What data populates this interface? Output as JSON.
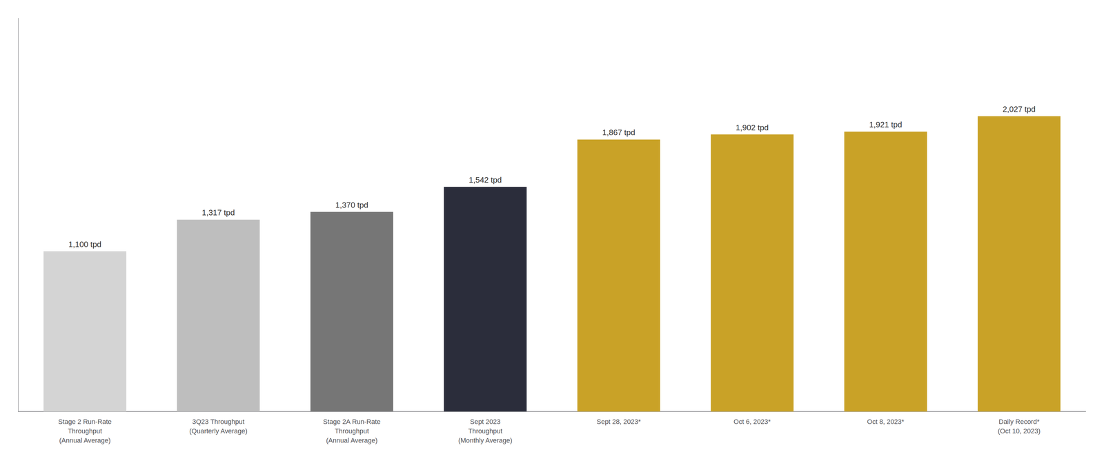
{
  "chart_data": {
    "type": "bar",
    "categories": [
      "Stage 2 Run-Rate\nThroughput\n(Annual Average)",
      "3Q23 Throughput\n(Quarterly Average)",
      "Stage 2A Run-Rate\nThroughput\n(Annual Average)",
      "Sept 2023\nThroughput\n(Monthly Average)",
      "Sept 28, 2023*",
      "Oct 6, 2023*",
      "Oct 8, 2023*",
      "Daily Record*\n(Oct 10, 2023)"
    ],
    "values": [
      1100,
      1317,
      1370,
      1542,
      1867,
      1902,
      1921,
      2027
    ],
    "value_labels": [
      "1,100 tpd",
      "1,317 tpd",
      "1,370 tpd",
      "1,542 tpd",
      "1,867 tpd",
      "1,902 tpd",
      "1,921 tpd",
      "2,027 tpd"
    ],
    "colors": [
      "#d4d4d4",
      "#bebebe",
      "#767676",
      "#2b2d3b",
      "#c9a227",
      "#c9a227",
      "#c9a227",
      "#c9a227"
    ],
    "ylim": [
      0,
      2700
    ],
    "grid": false,
    "tick_labels": "x",
    "data_labels": true
  }
}
